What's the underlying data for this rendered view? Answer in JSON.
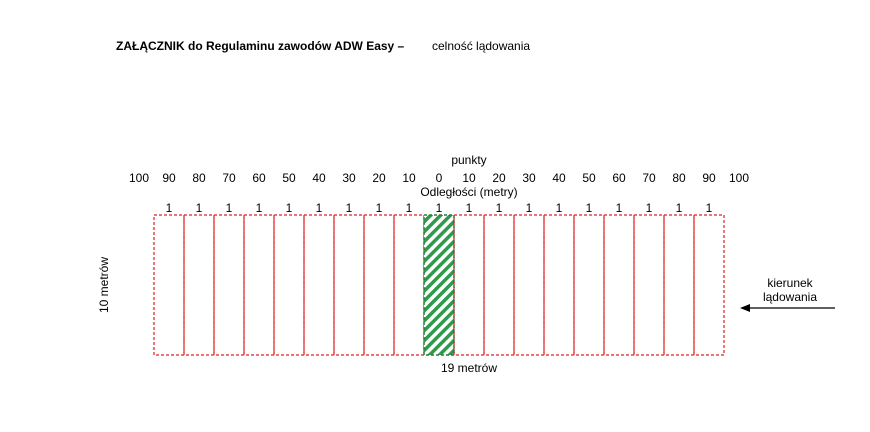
{
  "header": {
    "title_bold": "ZAŁĄCZNIK do Regulaminu zawodów ADW Easy –",
    "title_normal": "celność lądowania"
  },
  "diagram": {
    "points_label": "punkty",
    "distances": [
      "100",
      "90",
      "80",
      "70",
      "60",
      "50",
      "40",
      "30",
      "20",
      "10",
      "0",
      "10",
      "20",
      "30",
      "40",
      "50",
      "60",
      "70",
      "80",
      "90",
      "100"
    ],
    "distances_label": "Odległości (metry)",
    "points": [
      1,
      1,
      1,
      1,
      1,
      1,
      1,
      1,
      1,
      1,
      1,
      1,
      1,
      1,
      1,
      1,
      1,
      1,
      1
    ],
    "width_label": "19 metrów",
    "height_label": "10 metrów",
    "direction_label": [
      "kierunek",
      "lądowania"
    ]
  }
}
